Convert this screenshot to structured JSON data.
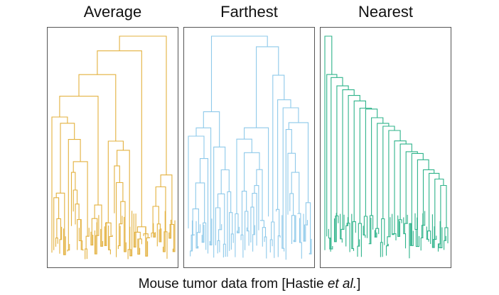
{
  "panels": [
    {
      "title": "Average",
      "color": "#e3b13e",
      "seed": 11,
      "shape": "balanced"
    },
    {
      "title": "Farthest",
      "color": "#8ec9ea",
      "seed": 23,
      "shape": "compact"
    },
    {
      "title": "Nearest",
      "color": "#2eb38a",
      "seed": 37,
      "shape": "chained"
    }
  ],
  "caption": {
    "prefix": "Mouse tumor data from [Hastie ",
    "emph": "et al.",
    "suffix": "]"
  }
}
